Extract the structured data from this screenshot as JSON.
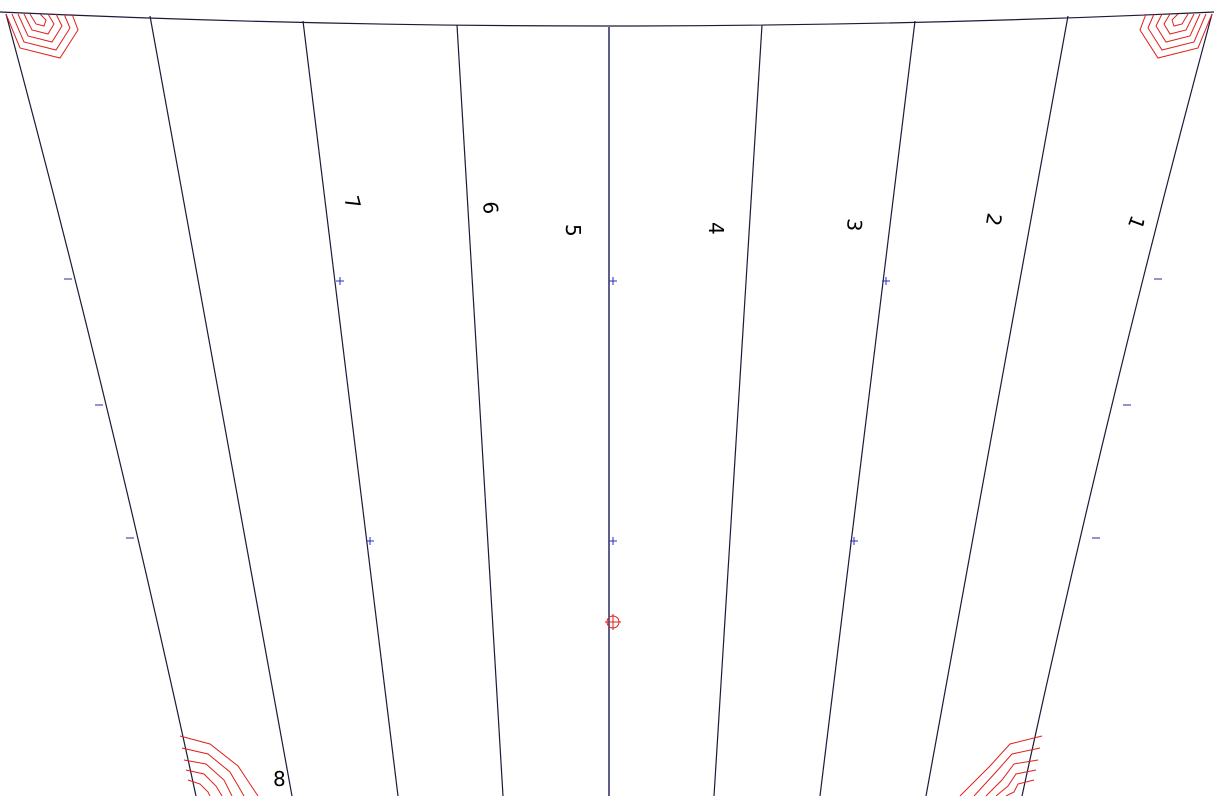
{
  "gore_labels": {
    "g1": "1",
    "g2": "2",
    "g3": "3",
    "g4": "4",
    "g5": "5",
    "g6": "6",
    "g7": "7",
    "g8": "8"
  },
  "colors": {
    "line": "#1a1a3a",
    "corner_marks": "#e0201a",
    "registration": "#2a2acc"
  }
}
